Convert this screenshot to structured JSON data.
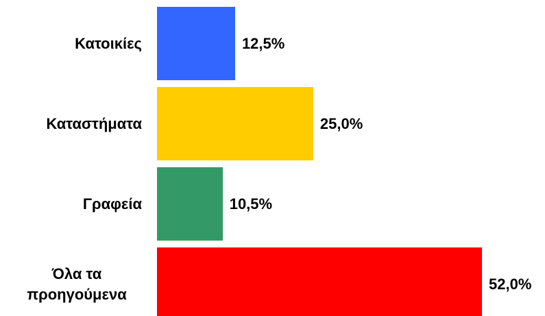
{
  "chart_data": {
    "type": "bar",
    "orientation": "horizontal",
    "categories": [
      "Κατοικίες",
      "Καταστήματα",
      "Γραφεία",
      "Όλα τα προηγούμενα"
    ],
    "values": [
      12.5,
      25.0,
      10.5,
      52.0
    ],
    "value_labels": [
      "12,5%",
      "25,0%",
      "10,5%",
      "52,0%"
    ],
    "colors": [
      "#3366ff",
      "#ffcc00",
      "#339966",
      "#ff0000"
    ]
  }
}
